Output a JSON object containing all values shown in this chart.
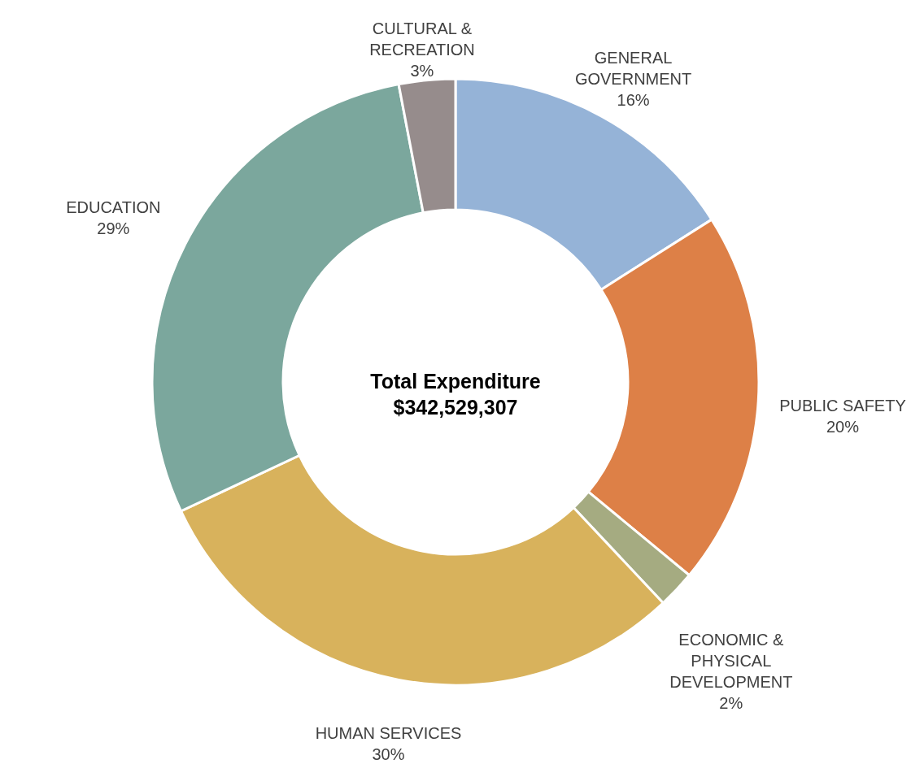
{
  "chart_data": {
    "type": "donut",
    "title": "Total Expenditure",
    "subtitle": "$342,529,307",
    "categories": [
      "GENERAL\nGOVERNMENT",
      "PUBLIC SAFETY",
      "ECONOMIC &\nPHYSICAL\nDEVELOPMENT",
      "HUMAN SERVICES",
      "EDUCATION",
      "CULTURAL &\nRECREATION"
    ],
    "values": [
      16,
      20,
      2,
      30,
      29,
      3
    ],
    "value_labels": [
      "16%",
      "20%",
      "2%",
      "30%",
      "29%",
      "3%"
    ],
    "colors": [
      "#95b3d7",
      "#dd8047",
      "#a5ab81",
      "#d8b25c",
      "#7ba79d",
      "#968c8c"
    ]
  }
}
